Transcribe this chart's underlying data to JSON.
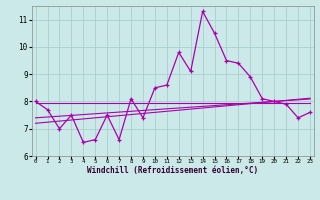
{
  "title": "",
  "xlabel": "Windchill (Refroidissement éolien,°C)",
  "ylabel": "",
  "bg_color": "#cbe9e9",
  "grid_color": "#aacfcf",
  "line_color": "#aa00aa",
  "x_values": [
    0,
    1,
    2,
    3,
    4,
    5,
    6,
    7,
    8,
    9,
    10,
    11,
    12,
    13,
    14,
    15,
    16,
    17,
    18,
    19,
    20,
    21,
    22,
    23
  ],
  "main_line": [
    8.0,
    7.7,
    7.0,
    7.5,
    6.5,
    6.6,
    7.5,
    6.6,
    8.1,
    7.4,
    8.5,
    8.6,
    9.8,
    9.1,
    11.3,
    10.5,
    9.5,
    9.4,
    8.9,
    8.1,
    8.0,
    7.9,
    7.4,
    7.6
  ],
  "trend_line1": [
    7.95,
    7.95,
    7.95,
    7.95,
    7.95,
    7.95,
    7.95,
    7.95,
    7.95,
    7.95,
    7.95,
    7.95,
    7.95,
    7.95,
    7.95,
    7.95,
    7.95,
    7.95,
    7.95,
    7.95,
    7.95,
    7.95,
    7.95,
    7.95
  ],
  "trend_line2": [
    7.4,
    7.43,
    7.46,
    7.49,
    7.52,
    7.55,
    7.58,
    7.61,
    7.64,
    7.67,
    7.7,
    7.73,
    7.76,
    7.79,
    7.82,
    7.85,
    7.88,
    7.91,
    7.94,
    7.97,
    8.0,
    8.03,
    8.06,
    8.09
  ],
  "trend_line3": [
    7.2,
    7.24,
    7.28,
    7.32,
    7.36,
    7.4,
    7.44,
    7.48,
    7.52,
    7.56,
    7.6,
    7.64,
    7.68,
    7.72,
    7.76,
    7.8,
    7.84,
    7.88,
    7.92,
    7.96,
    8.0,
    8.04,
    8.08,
    8.12
  ],
  "ylim": [
    6.0,
    11.5
  ],
  "yticks": [
    6,
    7,
    8,
    9,
    10,
    11
  ],
  "xticks": [
    0,
    1,
    2,
    3,
    4,
    5,
    6,
    7,
    8,
    9,
    10,
    11,
    12,
    13,
    14,
    15,
    16,
    17,
    18,
    19,
    20,
    21,
    22,
    23
  ]
}
